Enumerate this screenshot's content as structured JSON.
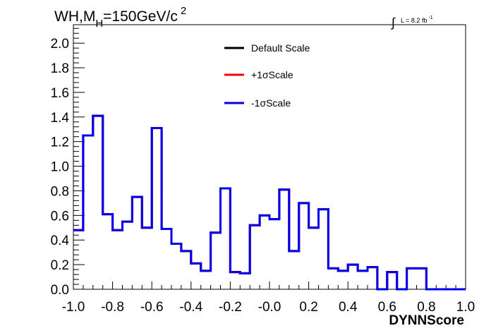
{
  "chart_data": {
    "type": "line",
    "style": "step",
    "title_main": "WH,M",
    "title_sub": "H",
    "title_rest": "=150GeV/c",
    "title_sup": "2",
    "lumi_label": "L = 8.2 fb",
    "lumi_sup": "-1",
    "xlabel": "DYNNScore",
    "ylabel": "",
    "xlim": [
      -1.0,
      1.0
    ],
    "ylim": [
      0.0,
      2.15
    ],
    "x_ticks": [
      "-1.0",
      "-0.8",
      "-0.6",
      "-0.4",
      "-0.2",
      "-0.0",
      "0.2",
      "0.4",
      "0.6",
      "0.8",
      "1.0"
    ],
    "y_ticks": [
      "0.0",
      "0.2",
      "0.4",
      "0.6",
      "0.8",
      "1.0",
      "1.2",
      "1.4",
      "1.6",
      "1.8",
      "2.0"
    ],
    "legend_position": "top-center",
    "bin_edges": [
      -1.0,
      -0.95,
      -0.9,
      -0.85,
      -0.8,
      -0.75,
      -0.7,
      -0.65,
      -0.6,
      -0.55,
      -0.5,
      -0.45,
      -0.4,
      -0.35,
      -0.3,
      -0.25,
      -0.2,
      -0.15,
      -0.1,
      -0.05,
      0.0,
      0.05,
      0.1,
      0.15,
      0.2,
      0.25,
      0.3,
      0.35,
      0.4,
      0.45,
      0.5,
      0.55,
      0.6,
      0.65,
      0.7,
      0.75,
      0.8,
      0.85,
      0.9,
      0.95,
      1.0
    ],
    "series": [
      {
        "name": "Default Scale",
        "color": "#000000",
        "values": [
          0.48,
          1.25,
          1.41,
          0.61,
          0.48,
          0.55,
          0.75,
          0.5,
          1.31,
          0.49,
          0.37,
          0.31,
          0.21,
          0.15,
          0.46,
          0.82,
          0.14,
          0.13,
          0.52,
          0.6,
          0.57,
          0.81,
          0.31,
          0.7,
          0.5,
          0.65,
          0.17,
          0.15,
          0.2,
          0.15,
          0.18,
          0.0,
          0.14,
          0.0,
          0.17,
          0.17,
          0.0,
          0.0,
          0.0,
          0.0
        ]
      },
      {
        "name": "+1σScale",
        "color": "#ff0000",
        "values": [
          0.48,
          1.25,
          1.41,
          0.61,
          0.48,
          0.55,
          0.75,
          0.5,
          1.31,
          0.49,
          0.37,
          0.31,
          0.21,
          0.15,
          0.46,
          0.82,
          0.14,
          0.13,
          0.52,
          0.6,
          0.57,
          0.81,
          0.31,
          0.7,
          0.5,
          0.65,
          0.17,
          0.15,
          0.2,
          0.15,
          0.18,
          0.0,
          0.14,
          0.0,
          0.17,
          0.17,
          0.0,
          0.0,
          0.0,
          0.0
        ]
      },
      {
        "name": "-1σScale",
        "color": "#0000ee",
        "values": [
          0.48,
          1.25,
          1.41,
          0.61,
          0.48,
          0.55,
          0.75,
          0.5,
          1.31,
          0.49,
          0.37,
          0.31,
          0.21,
          0.15,
          0.46,
          0.82,
          0.14,
          0.13,
          0.52,
          0.6,
          0.57,
          0.81,
          0.31,
          0.7,
          0.5,
          0.65,
          0.17,
          0.15,
          0.2,
          0.15,
          0.18,
          0.0,
          0.14,
          0.0,
          0.17,
          0.17,
          0.0,
          0.0,
          0.0,
          0.0
        ]
      }
    ]
  }
}
